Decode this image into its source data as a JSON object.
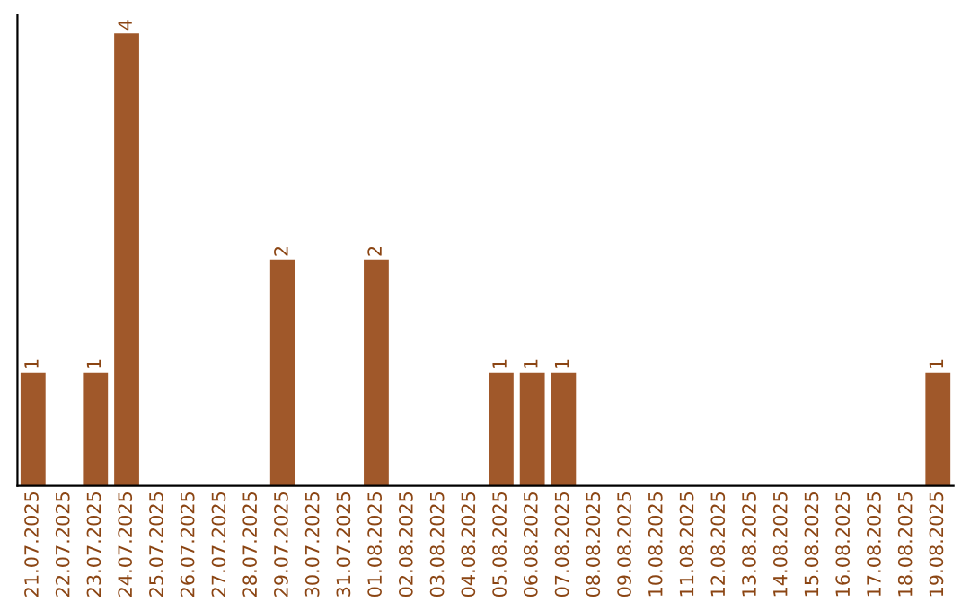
{
  "chart_data": {
    "type": "bar",
    "categories": [
      "21.07.2025",
      "22.07.2025",
      "23.07.2025",
      "24.07.2025",
      "25.07.2025",
      "26.07.2025",
      "27.07.2025",
      "28.07.2025",
      "29.07.2025",
      "30.07.2025",
      "31.07.2025",
      "01.08.2025",
      "02.08.2025",
      "03.08.2025",
      "04.08.2025",
      "05.08.2025",
      "06.08.2025",
      "07.08.2025",
      "08.08.2025",
      "09.08.2025",
      "10.08.2025",
      "11.08.2025",
      "12.08.2025",
      "13.08.2025",
      "14.08.2025",
      "15.08.2025",
      "16.08.2025",
      "17.08.2025",
      "18.08.2025",
      "19.08.2025"
    ],
    "values": [
      1,
      0,
      1,
      4,
      0,
      0,
      0,
      0,
      2,
      0,
      0,
      2,
      0,
      0,
      0,
      1,
      1,
      1,
      0,
      0,
      0,
      0,
      0,
      0,
      0,
      0,
      0,
      0,
      0,
      1
    ],
    "value_labels": [
      "1",
      null,
      "1",
      "4",
      null,
      null,
      null,
      null,
      "2",
      null,
      null,
      "2",
      null,
      null,
      null,
      "1",
      "1",
      "1",
      null,
      null,
      null,
      null,
      null,
      null,
      null,
      null,
      null,
      null,
      null,
      "1"
    ],
    "color": "#a0582a",
    "tick_labels": "x",
    "grid": false,
    "legend": false
  }
}
